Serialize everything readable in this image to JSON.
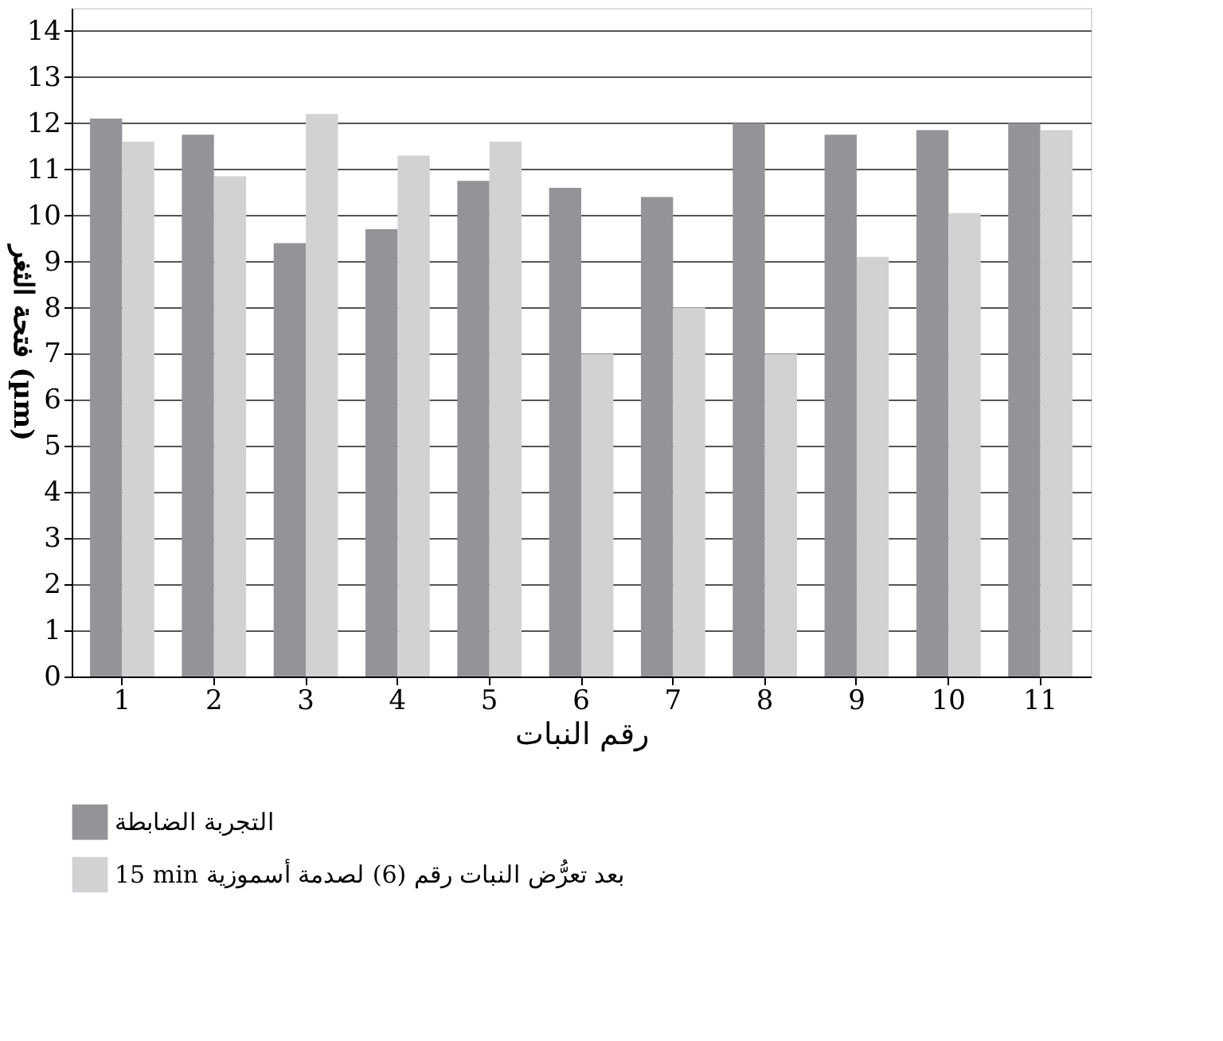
{
  "chart_data": {
    "type": "bar",
    "xlabel": "رقم النبات",
    "ylabel": "فتحة الثغر (µm)",
    "categories": [
      "1",
      "2",
      "3",
      "4",
      "5",
      "6",
      "7",
      "8",
      "9",
      "10",
      "11"
    ],
    "series": [
      {
        "name": "التجربة الضابطة",
        "color": "#939498",
        "values": [
          12.1,
          11.75,
          9.4,
          9.7,
          10.75,
          10.6,
          10.4,
          12.0,
          11.75,
          11.85,
          12.0
        ]
      },
      {
        "name": "15 min بعد تعرُّض النبات رقم (6) لصدمة أسموزية",
        "color": "#d1d2d4",
        "values": [
          11.6,
          10.85,
          12.2,
          11.3,
          11.6,
          7.0,
          8.0,
          7.0,
          9.1,
          10.05,
          11.85
        ]
      }
    ],
    "ylim": [
      0,
      14.5
    ],
    "yticks": [
      0,
      1,
      2,
      3,
      4,
      5,
      6,
      7,
      8,
      9,
      10,
      11,
      12,
      13,
      14
    ],
    "grid": "y",
    "legend": "bottom left"
  }
}
